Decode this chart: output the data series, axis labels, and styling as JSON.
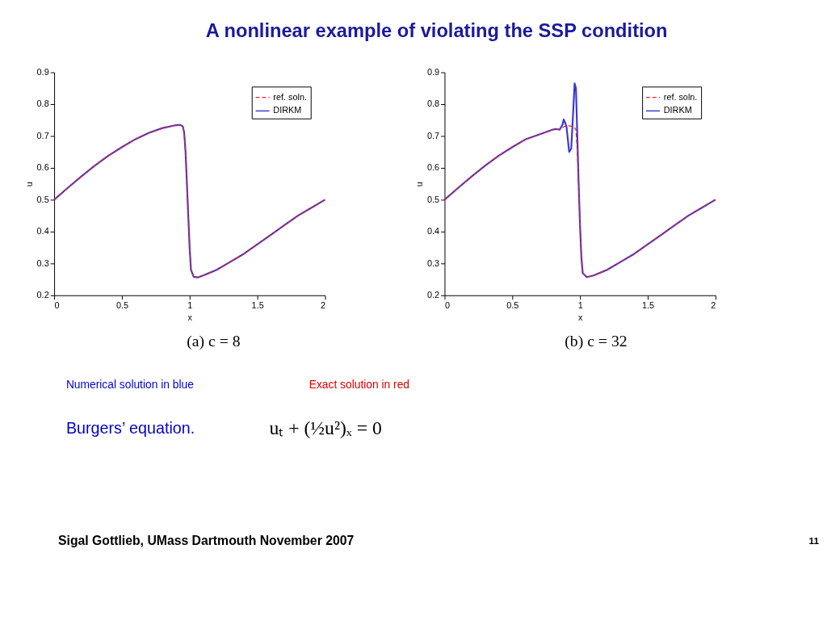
{
  "chart_data": [
    {
      "type": "line",
      "title": "A nonlinear example of violating the SSP condition",
      "xlabel": "x",
      "ylabel": "u",
      "xlim": [
        0,
        2
      ],
      "ylim": [
        0.2,
        0.9
      ],
      "xticks": [
        0,
        0.5,
        1,
        1.5,
        2
      ],
      "yticks": [
        0.2,
        0.3,
        0.4,
        0.5,
        0.6,
        0.7,
        0.8,
        0.9
      ],
      "grid": false,
      "legend": "top right",
      "series": [
        {
          "name": "ref. soln.",
          "color": "#e8212f",
          "line_style": "dashed",
          "x": [
            0,
            0.1,
            0.2,
            0.3,
            0.4,
            0.5,
            0.6,
            0.7,
            0.8,
            0.9,
            0.93,
            0.95,
            0.96,
            0.97,
            0.98,
            0.99,
            1.0,
            1.01,
            1.03,
            1.06,
            1.1,
            1.2,
            1.3,
            1.4,
            1.5,
            1.6,
            1.7,
            1.8,
            1.9,
            2.0
          ],
          "values": [
            0.5,
            0.537,
            0.573,
            0.607,
            0.638,
            0.665,
            0.69,
            0.71,
            0.725,
            0.734,
            0.735,
            0.73,
            0.71,
            0.65,
            0.55,
            0.45,
            0.35,
            0.28,
            0.258,
            0.256,
            0.262,
            0.28,
            0.305,
            0.33,
            0.36,
            0.39,
            0.42,
            0.45,
            0.475,
            0.5
          ]
        },
        {
          "name": "DIRKM",
          "color": "#3a3ad0",
          "line_style": "solid",
          "x": [
            0,
            0.1,
            0.2,
            0.3,
            0.4,
            0.5,
            0.6,
            0.7,
            0.8,
            0.9,
            0.93,
            0.95,
            0.96,
            0.97,
            0.98,
            0.99,
            1.0,
            1.01,
            1.03,
            1.06,
            1.1,
            1.2,
            1.3,
            1.4,
            1.5,
            1.6,
            1.7,
            1.8,
            1.9,
            2.0
          ],
          "values": [
            0.5,
            0.537,
            0.573,
            0.607,
            0.638,
            0.665,
            0.69,
            0.71,
            0.725,
            0.734,
            0.735,
            0.73,
            0.71,
            0.65,
            0.55,
            0.45,
            0.35,
            0.28,
            0.258,
            0.256,
            0.262,
            0.28,
            0.305,
            0.33,
            0.36,
            0.39,
            0.42,
            0.45,
            0.475,
            0.5
          ]
        }
      ],
      "annotations": [
        "(a) c = 8",
        "Numerical solution in blue",
        "Burgers’ equation.",
        "Sigal Gottlieb, UMass Dartmouth November 2007"
      ]
    },
    {
      "type": "line",
      "xlabel": "x",
      "ylabel": "u",
      "xlim": [
        0,
        2
      ],
      "ylim": [
        0.2,
        0.9
      ],
      "xticks": [
        0,
        0.5,
        1,
        1.5,
        2
      ],
      "yticks": [
        0.2,
        0.3,
        0.4,
        0.5,
        0.6,
        0.7,
        0.8,
        0.9
      ],
      "grid": false,
      "legend": "top right",
      "series": [
        {
          "name": "ref. soln.",
          "color": "#e8212f",
          "line_style": "dashed",
          "x": [
            0,
            0.1,
            0.2,
            0.3,
            0.4,
            0.5,
            0.6,
            0.7,
            0.8,
            0.85,
            0.9,
            0.95,
            0.97,
            0.98,
            0.99,
            1.0,
            1.01,
            1.02,
            1.05,
            1.1,
            1.2,
            1.3,
            1.4,
            1.5,
            1.6,
            1.7,
            1.8,
            1.9,
            2.0
          ],
          "values": [
            0.5,
            0.537,
            0.573,
            0.607,
            0.638,
            0.665,
            0.69,
            0.705,
            0.72,
            0.722,
            0.733,
            0.73,
            0.72,
            0.65,
            0.55,
            0.42,
            0.32,
            0.27,
            0.257,
            0.262,
            0.28,
            0.305,
            0.33,
            0.36,
            0.39,
            0.42,
            0.45,
            0.475,
            0.5
          ]
        },
        {
          "name": "DIRKM",
          "color": "#3a3ad0",
          "line_style": "solid",
          "x": [
            0,
            0.1,
            0.2,
            0.3,
            0.4,
            0.5,
            0.6,
            0.7,
            0.8,
            0.82,
            0.85,
            0.87,
            0.88,
            0.9,
            0.92,
            0.935,
            0.95,
            0.96,
            0.97,
            0.98,
            0.99,
            1.0,
            1.01,
            1.02,
            1.05,
            1.1,
            1.2,
            1.3,
            1.4,
            1.5,
            1.6,
            1.7,
            1.8,
            1.9,
            2.0
          ],
          "values": [
            0.5,
            0.537,
            0.573,
            0.607,
            0.638,
            0.665,
            0.69,
            0.705,
            0.72,
            0.722,
            0.72,
            0.735,
            0.752,
            0.73,
            0.65,
            0.66,
            0.78,
            0.865,
            0.85,
            0.7,
            0.55,
            0.42,
            0.32,
            0.27,
            0.257,
            0.262,
            0.28,
            0.305,
            0.33,
            0.36,
            0.39,
            0.42,
            0.45,
            0.475,
            0.5
          ]
        }
      ],
      "annotations": [
        "(b) c = 32",
        "Exact solution in red",
        "uₜ + (½u²)ₓ = 0",
        "11"
      ]
    }
  ]
}
